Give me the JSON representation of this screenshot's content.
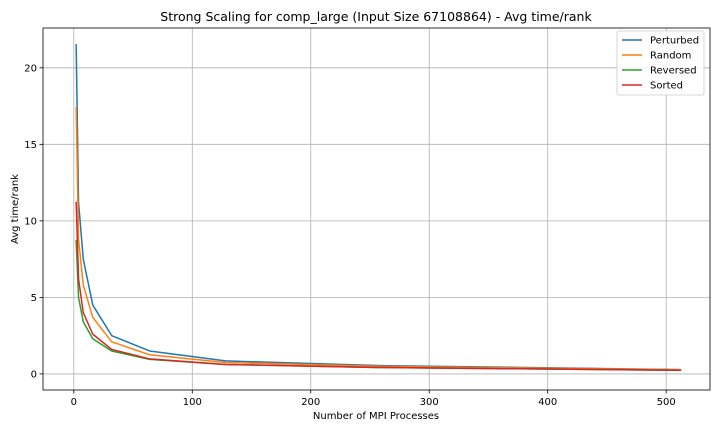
{
  "chart_data": {
    "type": "line",
    "title": "Strong Scaling for comp_large (Input Size 67108864) - Avg time/rank",
    "xlabel": "Number of MPI Processes",
    "ylabel": "Avg time/rank",
    "xlim": [
      -26,
      537
    ],
    "ylim": [
      -1.05,
      22.6
    ],
    "xticks": [
      0,
      100,
      200,
      300,
      400,
      500
    ],
    "yticks": [
      0,
      5,
      10,
      15,
      20
    ],
    "grid": true,
    "legend_position": "top-right",
    "x": [
      2,
      4,
      8,
      16,
      32,
      64,
      128,
      256,
      512
    ],
    "series": [
      {
        "name": "Perturbed",
        "color": "#1f77b4",
        "values": [
          21.5,
          11.2,
          7.5,
          4.5,
          2.5,
          1.5,
          0.85,
          0.55,
          0.28
        ]
      },
      {
        "name": "Random",
        "color": "#ff7f0e",
        "values": [
          17.4,
          8.8,
          5.8,
          3.7,
          2.1,
          1.25,
          0.75,
          0.5,
          0.27
        ]
      },
      {
        "name": "Reversed",
        "color": "#2ca02c",
        "values": [
          8.7,
          5.0,
          3.4,
          2.3,
          1.5,
          0.95,
          0.62,
          0.42,
          0.24
        ]
      },
      {
        "name": "Sorted",
        "color": "#d62728",
        "values": [
          11.2,
          6.2,
          4.0,
          2.6,
          1.6,
          0.98,
          0.62,
          0.42,
          0.24
        ]
      }
    ]
  }
}
